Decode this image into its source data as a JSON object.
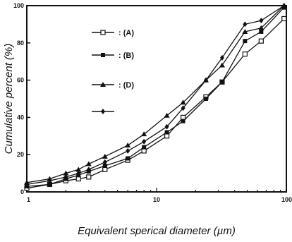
{
  "chart_data": {
    "type": "line",
    "title": "",
    "xlabel": "Equivalent sperical diameter (µm)",
    "ylabel": "Cumulative percent (%)",
    "x_scale": "log",
    "xlim": [
      1,
      100
    ],
    "ylim": [
      0,
      100
    ],
    "x_ticks": [
      {
        "value": 1,
        "label": "1"
      },
      {
        "value": 10,
        "label": "10"
      },
      {
        "value": 100,
        "label": "100"
      }
    ],
    "y_ticks": [
      {
        "value": 0,
        "label": "0"
      },
      {
        "value": 20,
        "label": "20"
      },
      {
        "value": 40,
        "label": "40"
      },
      {
        "value": 60,
        "label": "60"
      },
      {
        "value": 80,
        "label": "80"
      },
      {
        "value": 100,
        "label": "100"
      }
    ],
    "grid": false,
    "legend_position": "top-left",
    "x": [
      1,
      1.5,
      2,
      2.5,
      3,
      4,
      6,
      8,
      12,
      16,
      24,
      32,
      48,
      64,
      96
    ],
    "series": [
      {
        "name": "(A)",
        "marker": "open-square",
        "values": [
          2,
          4,
          6,
          7,
          8,
          12,
          17,
          22,
          30,
          40,
          51,
          59,
          74,
          81,
          93
        ]
      },
      {
        "name": "(B)",
        "marker": "filled-square",
        "values": [
          3,
          4,
          7,
          9,
          11,
          14,
          18,
          24,
          32,
          38,
          50,
          59,
          81,
          86,
          99
        ]
      },
      {
        "name": "(D)",
        "marker": "triangle",
        "values": [
          5,
          7,
          10,
          12,
          15,
          19,
          25,
          31,
          41,
          48,
          60,
          68,
          86,
          88,
          100
        ]
      },
      {
        "name": "",
        "marker": "diamond",
        "values": [
          4,
          6,
          8,
          10,
          12,
          16,
          22,
          27,
          35,
          45,
          60,
          72,
          90,
          92,
          100
        ]
      }
    ]
  }
}
